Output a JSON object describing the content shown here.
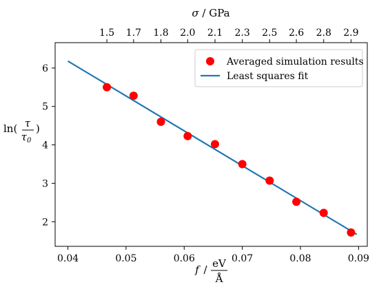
{
  "chart_data": {
    "type": "scatter",
    "x_axis": {
      "label_main": "f",
      "label_unit_num": "eV",
      "label_unit_den": "Å",
      "range": [
        0.0378,
        0.0915
      ],
      "ticks": [
        0.04,
        0.05,
        0.06,
        0.07,
        0.08,
        0.09
      ],
      "tick_labels": [
        "0.04",
        "0.05",
        "0.06",
        "0.07",
        "0.08",
        "0.09"
      ]
    },
    "y_axis": {
      "label_prefix": "ln(",
      "label_num": "τ",
      "label_den": "τ",
      "label_den_sub": "0",
      "label_suffix": ")",
      "range": [
        1.36,
        6.66
      ],
      "ticks": [
        2,
        3,
        4,
        5,
        6
      ],
      "tick_labels": [
        "2",
        "3",
        "4",
        "5",
        "6"
      ]
    },
    "top_axis": {
      "label_symbol": "σ",
      "label_unit": " / GPa",
      "ticks_at_x": [
        0.0467,
        0.0513,
        0.056,
        0.0606,
        0.0653,
        0.07,
        0.0747,
        0.0793,
        0.084,
        0.0887
      ],
      "tick_labels": [
        "1.5",
        "1.7",
        "1.8",
        "2.0",
        "2.1",
        "2.3",
        "2.5",
        "2.6",
        "2.8",
        "2.9"
      ]
    },
    "series": [
      {
        "name": "Averaged simulation results",
        "kind": "scatter",
        "color": "#ff0000",
        "x": [
          0.0467,
          0.0513,
          0.056,
          0.0606,
          0.0653,
          0.07,
          0.0747,
          0.0793,
          0.084,
          0.0887
        ],
        "y": [
          5.5,
          5.28,
          4.6,
          4.23,
          4.02,
          3.5,
          3.07,
          2.52,
          2.23,
          1.72
        ]
      },
      {
        "name": "Least squares fit",
        "kind": "line",
        "color": "#1f77b4",
        "x": [
          0.04,
          0.0897
        ],
        "y": [
          6.18,
          1.67
        ]
      }
    ],
    "legend": {
      "placement": "top-right"
    },
    "grid": false
  }
}
